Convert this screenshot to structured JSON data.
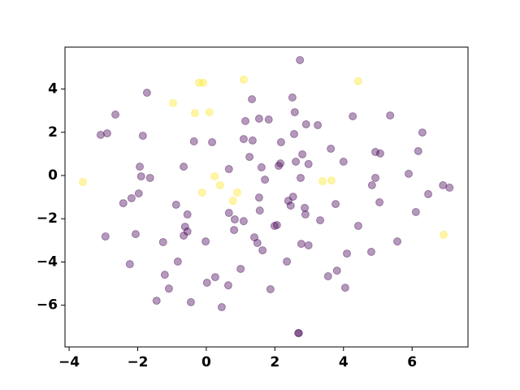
{
  "chart_data": {
    "type": "scatter",
    "xlim": [
      -4.12,
      7.63
    ],
    "ylim": [
      -7.93,
      5.94
    ],
    "xticks": [
      {
        "value": -4,
        "label": "−4"
      },
      {
        "value": -2,
        "label": "−2"
      },
      0,
      2,
      4,
      6
    ],
    "yticks": [
      {
        "value": -6,
        "label": "−6"
      },
      {
        "value": -4,
        "label": "−4"
      },
      {
        "value": -2,
        "label": "−2"
      },
      0,
      2,
      4
    ],
    "grid": false,
    "series": [
      {
        "color": "#440154",
        "x": [
          2.73,
          -1.73,
          -2.65,
          -3.08,
          -2.89,
          -1.85,
          1.33,
          1.14,
          1.54,
          1.82,
          2.51,
          2.58,
          2.91,
          3.25,
          4.27,
          5.36,
          6.3,
          6.18,
          4.93,
          5.07,
          2.56,
          2.18,
          1.09,
          1.35,
          1.26,
          -0.36,
          0.17,
          2.8,
          2.61,
          2.98,
          3.63,
          4.0,
          2.16,
          2.11,
          1.61,
          -0.66,
          -1.94,
          -1.9,
          -1.64,
          0.66,
          1.71,
          2.75,
          4.93,
          4.83,
          5.9,
          6.9,
          7.09,
          6.47,
          -1.97,
          -2.18,
          -2.42,
          -0.88,
          1.54,
          2.39,
          2.53,
          2.46,
          2.87,
          2.89,
          3.77,
          5.05,
          6.11,
          -0.55,
          0.66,
          1.56,
          0.83,
          1.09,
          -0.62,
          2.06,
          1.99,
          3.32,
          4.43,
          -2.06,
          -2.94,
          -0.55,
          -0.66,
          0.81,
          1.4,
          1.49,
          1.64,
          2.77,
          2.98,
          -1.26,
          -0.02,
          4.1,
          4.81,
          5.57,
          2.35,
          -0.83,
          -2.23,
          1.0,
          -1.21,
          0.26,
          3.55,
          3.81,
          0.02,
          0.64,
          -1.09,
          4.05,
          1.87,
          -1.45,
          -0.45,
          0.45,
          2.68,
          2.7
        ],
        "y": [
          5.34,
          3.83,
          2.82,
          1.88,
          1.95,
          1.84,
          3.53,
          2.52,
          2.63,
          2.59,
          3.61,
          2.93,
          2.37,
          2.33,
          2.74,
          2.78,
          1.99,
          1.13,
          1.09,
          1.02,
          1.92,
          1.54,
          1.69,
          1.62,
          0.86,
          1.58,
          1.54,
          0.98,
          0.64,
          0.53,
          1.24,
          0.64,
          0.56,
          0.45,
          0.38,
          0.41,
          0.41,
          -0.04,
          -0.11,
          0.3,
          -0.19,
          -0.11,
          -0.11,
          -0.45,
          0.08,
          -0.45,
          -0.56,
          -0.86,
          -0.83,
          -1.05,
          -1.28,
          -1.35,
          -1.02,
          -1.17,
          -0.98,
          -1.39,
          -1.5,
          -1.8,
          -1.32,
          -1.24,
          -1.69,
          -1.8,
          -1.73,
          -1.62,
          -2.03,
          -2.11,
          -2.37,
          -2.29,
          -2.33,
          -2.07,
          -2.33,
          -2.71,
          -2.82,
          -2.59,
          -2.78,
          -2.52,
          -2.86,
          -3.12,
          -3.46,
          -3.16,
          -3.23,
          -3.08,
          -3.05,
          -3.61,
          -3.53,
          -3.05,
          -3.98,
          -3.98,
          -4.1,
          -4.32,
          -4.59,
          -4.7,
          -4.66,
          -4.4,
          -4.96,
          -5.08,
          -5.23,
          -5.19,
          -5.26,
          -5.79,
          -5.86,
          -6.09,
          -7.29,
          -7.29
        ]
      },
      {
        "color": "#fde725",
        "x": [
          -3.6,
          -0.97,
          -0.21,
          -0.09,
          1.09,
          4.43,
          -0.33,
          0.09,
          0.24,
          0.4,
          -0.12,
          0.9,
          0.78,
          3.39,
          3.65,
          6.92
        ],
        "y": [
          -0.3,
          3.35,
          4.29,
          4.29,
          4.44,
          4.36,
          2.89,
          2.93,
          -0.04,
          -0.45,
          -0.79,
          -0.79,
          -1.17,
          -0.26,
          -0.23,
          -2.74
        ]
      }
    ]
  }
}
